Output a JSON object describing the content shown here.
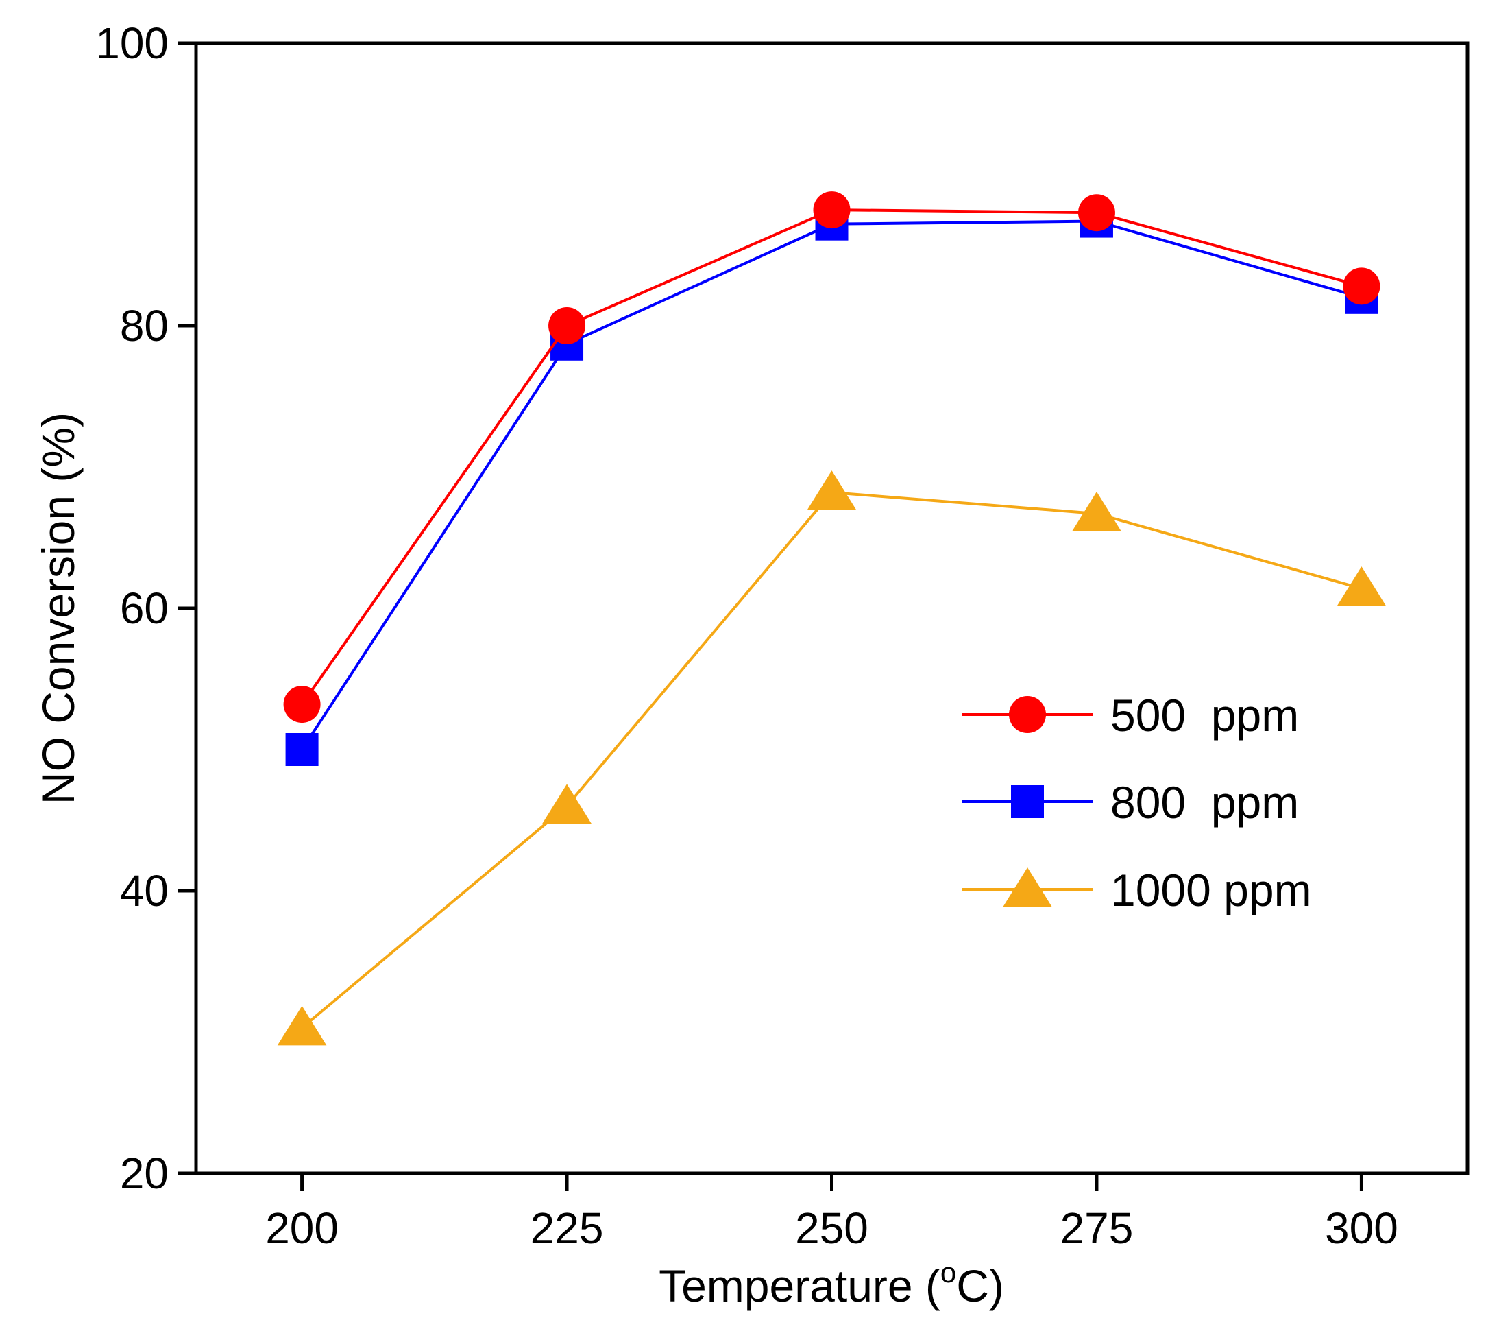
{
  "chart_data": {
    "type": "line",
    "title": "",
    "xlabel": "Temperature (",
    "xlabel_superscript": "o",
    "xlabel_suffix": "C)",
    "ylabel": "NO Conversion (%)",
    "x": [
      200,
      225,
      250,
      275,
      300
    ],
    "xlim": [
      190,
      310
    ],
    "ylim": [
      20,
      100
    ],
    "xticks": [
      "200",
      "225",
      "250",
      "275",
      "300"
    ],
    "yticks": [
      "20",
      "40",
      "60",
      "80",
      "100"
    ],
    "grid": false,
    "legend_position": "center-right",
    "series": [
      {
        "name": "500  ppm",
        "marker": "circle",
        "color": "#ff0000",
        "values": [
          53.2,
          80.0,
          88.2,
          88.0,
          82.8
        ]
      },
      {
        "name": "800  ppm",
        "marker": "square",
        "color": "#0000ff",
        "values": [
          50.0,
          78.7,
          87.2,
          87.4,
          82.0
        ]
      },
      {
        "name": "1000 ppm",
        "marker": "triangle",
        "color": "#f5a816",
        "values": [
          30.3,
          46.0,
          68.2,
          66.7,
          61.4
        ]
      }
    ]
  }
}
